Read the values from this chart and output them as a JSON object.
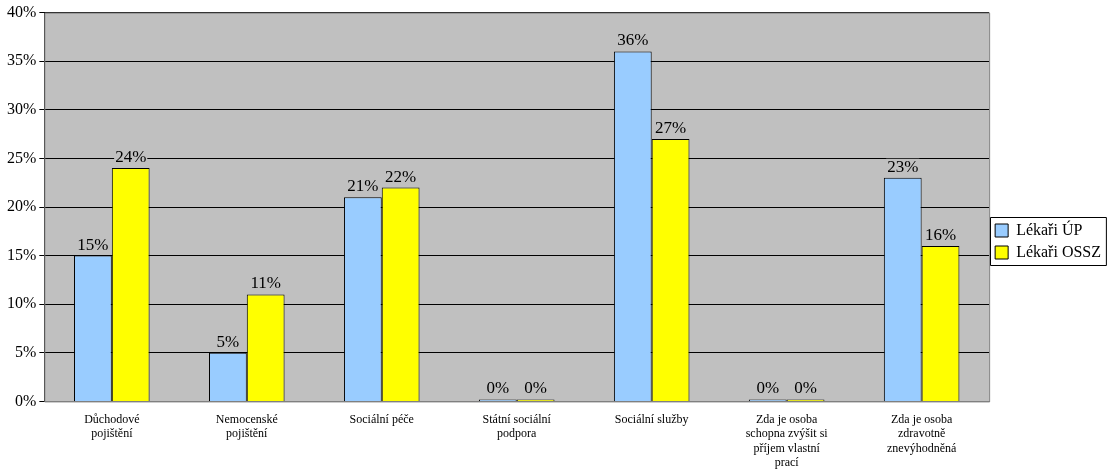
{
  "chart_data": {
    "type": "bar",
    "categories": [
      "Důchodové pojištění",
      "Nemocenské pojištění",
      "Sociální péče",
      "Státní sociální podpora",
      "Sociální služby",
      "Zda je osoba schopna zvýšit si příjem vlastní prací",
      "Zda je osoba zdravotně znevýhodněná"
    ],
    "series": [
      {
        "name": "Lékaři ÚP",
        "color": "#99ccff",
        "values": [
          15,
          5,
          21,
          0,
          36,
          0,
          23
        ],
        "value_labels": [
          "15%",
          "5%",
          "21%",
          "0%",
          "36%",
          "0%",
          "23%"
        ]
      },
      {
        "name": "Lékaři OSSZ",
        "color": "#ffff00",
        "values": [
          24,
          11,
          22,
          0,
          27,
          0,
          16
        ],
        "value_labels": [
          "24%",
          "11%",
          "22%",
          "0%",
          "27%",
          "0%",
          "16%"
        ]
      }
    ],
    "ylim": [
      0,
      40
    ],
    "yticks": [
      {
        "value": 0,
        "label": "0%"
      },
      {
        "value": 5,
        "label": "5%"
      },
      {
        "value": 10,
        "label": "10%"
      },
      {
        "value": 15,
        "label": "15%"
      },
      {
        "value": 20,
        "label": "20%"
      },
      {
        "value": 25,
        "label": "25%"
      },
      {
        "value": 30,
        "label": "30%"
      },
      {
        "value": 35,
        "label": "35%"
      },
      {
        "value": 40,
        "label": "40%"
      }
    ],
    "grid": "y",
    "legend": "right"
  }
}
